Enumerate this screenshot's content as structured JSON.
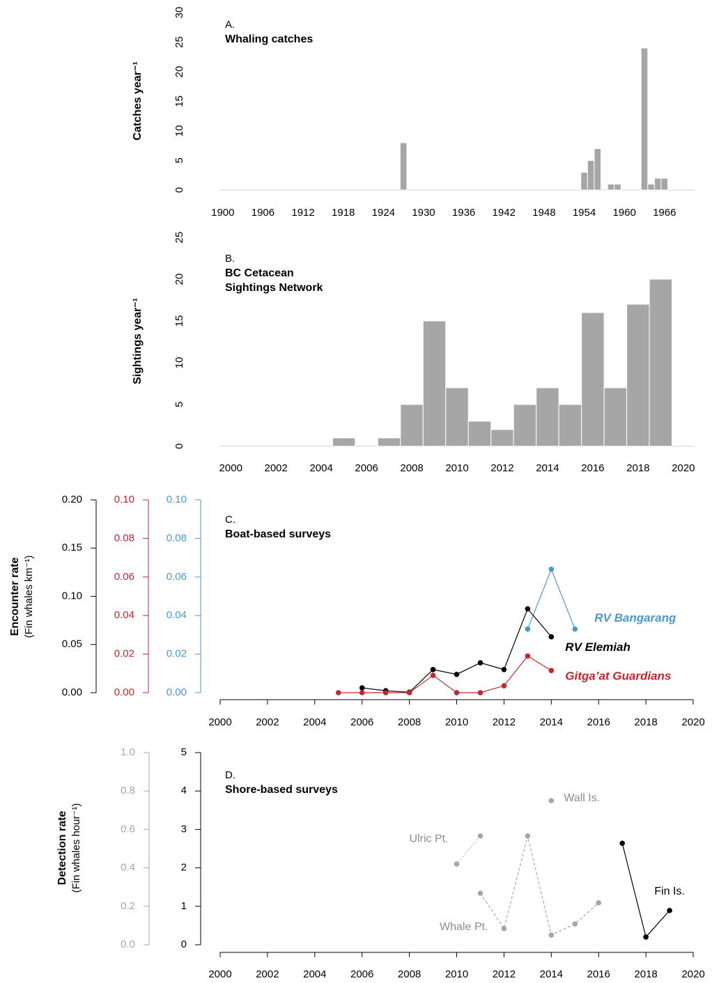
{
  "chart_data": [
    {
      "type": "bar",
      "label": "A.",
      "title": "Whaling catches",
      "ylabel": "Catches year⁻¹",
      "x": [
        1927,
        1954,
        1955,
        1956,
        1958,
        1959,
        1963,
        1964,
        1965,
        1966
      ],
      "values": [
        8,
        3,
        5,
        7,
        1,
        1,
        24,
        1,
        2,
        2
      ],
      "color": "#a6a6a6",
      "xlim": [
        1899.5,
        1970.5
      ],
      "xticks": [
        1900,
        1906,
        1912,
        1918,
        1924,
        1930,
        1936,
        1942,
        1948,
        1954,
        1960,
        1966
      ],
      "ylim": [
        0,
        30
      ],
      "yticks": [
        0,
        5,
        10,
        15,
        20,
        25,
        30
      ]
    },
    {
      "type": "bar",
      "label": "B.",
      "title": [
        "BC Cetacean",
        "Sightings Network"
      ],
      "ylabel": "Sightings year⁻¹",
      "x": [
        2005,
        2006,
        2007,
        2008,
        2009,
        2010,
        2011,
        2012,
        2013,
        2014,
        2015,
        2016,
        2017,
        2018,
        2019
      ],
      "values": [
        1,
        0,
        1,
        5,
        15,
        7,
        3,
        2,
        5,
        7,
        5,
        16,
        7,
        17,
        20
      ],
      "color": "#a6a6a6",
      "xlim": [
        1999.5,
        2020.5
      ],
      "xticks": [
        2000,
        2002,
        2004,
        2006,
        2008,
        2010,
        2012,
        2014,
        2016,
        2018,
        2020
      ],
      "ylim": [
        0,
        25
      ],
      "yticks": [
        0,
        5,
        10,
        15,
        20,
        25
      ]
    },
    {
      "type": "line",
      "label": "C.",
      "title": "Boat-based surveys",
      "ylabel": "Encounter rate",
      "ylabel2": "(Fin whales  km⁻¹)",
      "xlim": [
        2000,
        2020
      ],
      "xticks": [
        2000,
        2002,
        2004,
        2006,
        2008,
        2010,
        2012,
        2014,
        2016,
        2018,
        2020
      ],
      "ylim": [
        0,
        0.2
      ],
      "yticks": [
        {
          "value": 0,
          "label": "0.00"
        },
        {
          "value": 0.05,
          "label": "0.05"
        },
        {
          "value": 0.1,
          "label": "0.10"
        },
        {
          "value": 0.15,
          "label": "0.15"
        },
        {
          "value": 0.2,
          "label": "0.20"
        }
      ],
      "y2lim": [
        0,
        0.1
      ],
      "y2color": "#c0282d",
      "y2ticks": [
        {
          "value": 0,
          "label": "0.00"
        },
        {
          "value": 0.02,
          "label": "0.02"
        },
        {
          "value": 0.04,
          "label": "0.04"
        },
        {
          "value": 0.06,
          "label": "0.06"
        },
        {
          "value": 0.08,
          "label": "0.08"
        },
        {
          "value": 0.1,
          "label": "0.10"
        }
      ],
      "y3lim": [
        0,
        0.1
      ],
      "y3color": "#4a98cf",
      "y3ticks": [
        {
          "value": 0,
          "label": "0.00"
        },
        {
          "value": 0.02,
          "label": "0.02"
        },
        {
          "value": 0.04,
          "label": "0.04"
        },
        {
          "value": 0.06,
          "label": "0.06"
        },
        {
          "value": 0.08,
          "label": "0.08"
        },
        {
          "value": 0.1,
          "label": "0.10"
        }
      ],
      "series": [
        {
          "name": "RV Bangarang",
          "color": "#4a98cf",
          "axis": "y3",
          "x": [
            2013,
            2014,
            2015
          ],
          "values": [
            0.033,
            0.064,
            0.033
          ]
        },
        {
          "name": "RV Elemiah",
          "color": "#000000",
          "axis": "y",
          "x": [
            2006,
            2007,
            2008,
            2009,
            2010,
            2011,
            2012,
            2013,
            2014
          ],
          "values": [
            0.005,
            0.002,
            0.0005,
            0.024,
            0.019,
            0.031,
            0.024,
            0.087,
            0.058
          ]
        },
        {
          "name": "Gitga’at Guardians",
          "color": "#c0282d",
          "axis": "y2",
          "x": [
            2005,
            2006,
            2007,
            2008,
            2009,
            2010,
            2011,
            2012,
            2013,
            2014
          ],
          "values": [
            0,
            0,
            0,
            0,
            0.009,
            0,
            0,
            0.0036,
            0.019,
            0.0115
          ]
        }
      ]
    },
    {
      "type": "line",
      "label": "D.",
      "title": "Shore-based surveys",
      "ylabel": "Detection rate",
      "ylabel2": "(Fin whales  hour⁻¹)",
      "xlim": [
        2000,
        2020
      ],
      "xticks": [
        2000,
        2002,
        2004,
        2006,
        2008,
        2010,
        2012,
        2014,
        2016,
        2018,
        2020
      ],
      "ylim": [
        0,
        5
      ],
      "yticks": [
        0,
        1,
        2,
        3,
        4,
        5
      ],
      "y2lim": [
        0,
        1
      ],
      "y2color": "#a6a6a6",
      "y2ticks": [
        {
          "value": 0,
          "label": "0.0"
        },
        {
          "value": 0.2,
          "label": "0.2"
        },
        {
          "value": 0.4,
          "label": "0.4"
        },
        {
          "value": 0.6,
          "label": "0.6"
        },
        {
          "value": 0.8,
          "label": "0.8"
        },
        {
          "value": 1,
          "label": "1.0"
        }
      ],
      "series": [
        {
          "name": "Ulric Pt.",
          "color": "#a6a6a6",
          "axis": "y2",
          "linestyle": "dotted",
          "x": [
            2010,
            2011
          ],
          "values": [
            0.42,
            0.566
          ]
        },
        {
          "name": "Wall Is.",
          "color": "#a6a6a6",
          "axis": "y2",
          "x": [
            2014
          ],
          "values": [
            0.75
          ]
        },
        {
          "name": "Whale Pt.",
          "color": "#a6a6a6",
          "axis": "y2",
          "linestyle": "dashed",
          "x": [
            2011,
            2012,
            2013,
            2014,
            2015,
            2016
          ],
          "values": [
            0.268,
            0.084,
            0.566,
            0.05,
            0.108,
            0.218
          ]
        },
        {
          "name": "Fin Is.",
          "color": "#000000",
          "axis": "y",
          "linestyle": "solid",
          "x": [
            2017,
            2018,
            2019
          ],
          "values": [
            2.64,
            0.2,
            0.89
          ]
        }
      ]
    }
  ]
}
